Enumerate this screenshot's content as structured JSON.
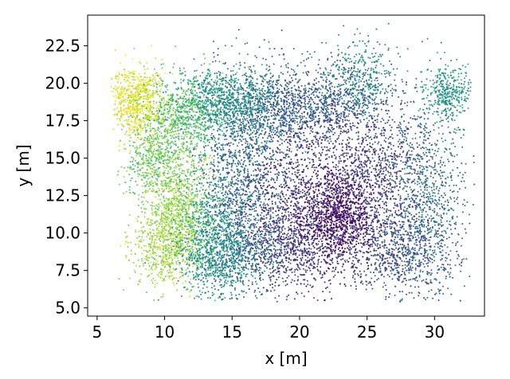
{
  "chart_data": {
    "type": "scatter",
    "title": "",
    "xlabel": "x [m]",
    "ylabel": "y [m]",
    "xlim": [
      4.3,
      33.7
    ],
    "ylim": [
      4.45,
      24.55
    ],
    "xticks": [
      5,
      10,
      15,
      20,
      25,
      30
    ],
    "xtick_labels": [
      "5",
      "10",
      "15",
      "20",
      "25",
      "30"
    ],
    "yticks": [
      5.0,
      7.5,
      10.0,
      12.5,
      15.0,
      17.5,
      20.0,
      22.5
    ],
    "ytick_labels": [
      "5.0",
      "7.5",
      "10.0",
      "12.5",
      "15.0",
      "17.5",
      "20.0",
      "22.5"
    ],
    "grid": false,
    "legend": "none",
    "colormap": "viridis",
    "colormap_stops": [
      "#440154",
      "#482878",
      "#3e4989",
      "#31688e",
      "#26828e",
      "#1f9e89",
      "#35b779",
      "#6ece58",
      "#b5de2b",
      "#fde725"
    ],
    "color_value_description": "point color shown by viewpoint from low (purple) to high (yellow)",
    "point_color_value_range": [
      0,
      1
    ],
    "extent": {
      "x": [
        6.0,
        33.0
      ],
      "y": [
        5.4,
        24.0
      ]
    },
    "clusters": [
      {
        "x": 23.0,
        "y": 11.0,
        "sx": 1.4,
        "sy": 1.6,
        "n": 900,
        "c": 0.02
      },
      {
        "x": 21.0,
        "y": 12.5,
        "sx": 2.3,
        "sy": 2.8,
        "n": 900,
        "c": 0.1
      },
      {
        "x": 19.0,
        "y": 9.0,
        "sx": 2.0,
        "sy": 1.4,
        "n": 800,
        "c": 0.2
      },
      {
        "x": 25.5,
        "y": 14.0,
        "sx": 1.8,
        "sy": 2.2,
        "n": 800,
        "c": 0.2
      },
      {
        "x": 17.0,
        "y": 14.0,
        "sx": 2.0,
        "sy": 3.0,
        "n": 900,
        "c": 0.27
      },
      {
        "x": 27.0,
        "y": 9.0,
        "sx": 1.8,
        "sy": 1.5,
        "n": 700,
        "c": 0.24
      },
      {
        "x": 29.5,
        "y": 12.0,
        "sx": 1.4,
        "sy": 3.5,
        "n": 900,
        "c": 0.36
      },
      {
        "x": 22.0,
        "y": 18.5,
        "sx": 2.5,
        "sy": 1.3,
        "n": 900,
        "c": 0.28
      },
      {
        "x": 17.5,
        "y": 18.5,
        "sx": 2.0,
        "sy": 1.5,
        "n": 600,
        "c": 0.37
      },
      {
        "x": 24.5,
        "y": 20.5,
        "sx": 1.3,
        "sy": 1.3,
        "n": 350,
        "c": 0.47
      },
      {
        "x": 14.5,
        "y": 8.5,
        "sx": 1.6,
        "sy": 1.4,
        "n": 800,
        "c": 0.45
      },
      {
        "x": 14.5,
        "y": 18.8,
        "sx": 1.7,
        "sy": 1.1,
        "n": 700,
        "c": 0.52
      },
      {
        "x": 31.0,
        "y": 19.3,
        "sx": 0.8,
        "sy": 0.9,
        "n": 350,
        "c": 0.55
      },
      {
        "x": 15.0,
        "y": 13.0,
        "sx": 1.3,
        "sy": 2.5,
        "n": 500,
        "c": 0.4
      },
      {
        "x": 11.5,
        "y": 18.0,
        "sx": 1.4,
        "sy": 1.3,
        "n": 700,
        "c": 0.72
      },
      {
        "x": 10.8,
        "y": 12.0,
        "sx": 1.3,
        "sy": 2.2,
        "n": 900,
        "c": 0.82
      },
      {
        "x": 10.0,
        "y": 9.0,
        "sx": 1.2,
        "sy": 1.3,
        "n": 500,
        "c": 0.86
      },
      {
        "x": 9.0,
        "y": 15.0,
        "sx": 1.0,
        "sy": 1.2,
        "n": 400,
        "c": 0.76
      },
      {
        "x": 8.0,
        "y": 18.7,
        "sx": 1.0,
        "sy": 1.2,
        "n": 700,
        "c": 0.95
      },
      {
        "x": 13.0,
        "y": 10.0,
        "sx": 1.2,
        "sy": 2.5,
        "n": 500,
        "c": 0.6
      }
    ]
  }
}
